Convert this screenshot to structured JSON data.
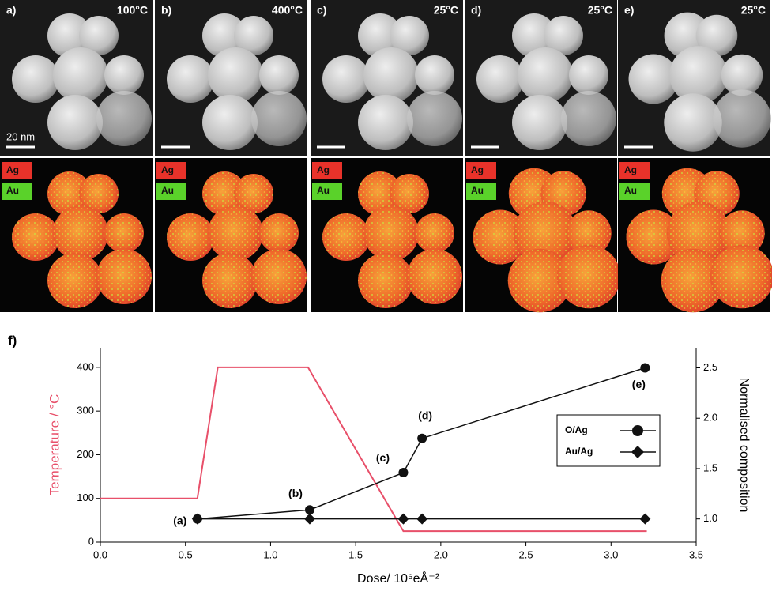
{
  "panels": [
    {
      "label": "a)",
      "temperature": "100°C"
    },
    {
      "label": "b)",
      "temperature": "400°C"
    },
    {
      "label": "c)",
      "temperature": "25°C"
    },
    {
      "label": "d)",
      "temperature": "25°C"
    },
    {
      "label": "e)",
      "temperature": "25°C"
    }
  ],
  "scale_bar": "20 nm",
  "elements": [
    "Ag",
    "Au"
  ],
  "chart_data": {
    "type": "line",
    "panel_label": "f)",
    "x_label": "Dose/ 10⁶eÅ⁻²",
    "y_label": "Temperature / °C",
    "y2_label": "Normalised composition",
    "xlim": [
      0,
      3.5
    ],
    "xticks": [
      {
        "value": 0,
        "label": "0.0"
      },
      {
        "value": 0.5,
        "label": "0.5"
      },
      {
        "value": 1,
        "label": "1.0"
      },
      {
        "value": 1.5,
        "label": "1.5"
      },
      {
        "value": 2,
        "label": "2.0"
      },
      {
        "value": 2.5,
        "label": "2.5"
      },
      {
        "value": 3,
        "label": "3.0"
      },
      {
        "value": 3.5,
        "label": "3.5"
      }
    ],
    "ylim": [
      0,
      445
    ],
    "yticks": [
      0,
      100,
      200,
      300,
      400
    ],
    "y2lim": [
      0.77,
      2.7
    ],
    "y2ticks": [
      {
        "value": 1,
        "label": "1.0"
      },
      {
        "value": 1.5,
        "label": "1.5"
      },
      {
        "value": 2,
        "label": "2.0"
      },
      {
        "value": 2.5,
        "label": "2.5"
      }
    ],
    "series": [
      {
        "name": "Temperature",
        "color": "#e8506a",
        "x": [
          0,
          0.57,
          0.69,
          1.22,
          1.78,
          3.21
        ],
        "values": [
          100,
          100,
          400,
          400,
          25,
          25
        ]
      },
      {
        "name": "O/Ag",
        "color": "#111111",
        "marker": "circle",
        "axis": "y2",
        "x": [
          0.57,
          1.23,
          1.78,
          1.89,
          3.2
        ],
        "values": [
          1.0,
          1.09,
          1.46,
          1.8,
          2.5
        ],
        "point_labels": [
          "(a)",
          "(b)",
          "(c)",
          "(d)",
          "(e)"
        ]
      },
      {
        "name": "Au/Ag",
        "color": "#111111",
        "marker": "diamond",
        "axis": "y2",
        "x": [
          0.57,
          1.23,
          1.78,
          1.89,
          3.2
        ],
        "values": [
          1.0,
          1.0,
          1.0,
          1.0,
          1.0
        ]
      }
    ]
  }
}
